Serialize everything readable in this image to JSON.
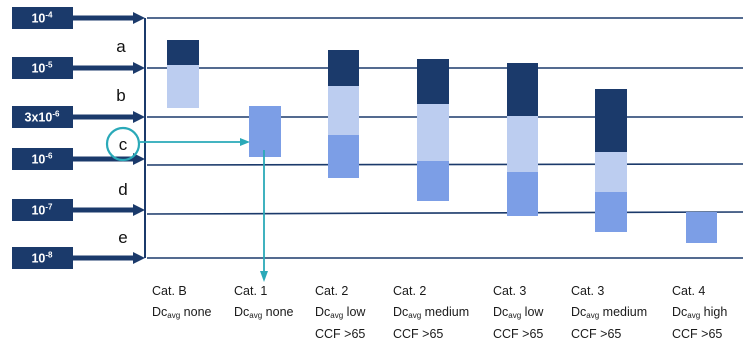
{
  "levels": [
    {
      "base": "10",
      "exp": "-4"
    },
    {
      "base": "10",
      "exp": "-5"
    },
    {
      "base": "3x10",
      "exp": "-6"
    },
    {
      "base": "10",
      "exp": "-6"
    },
    {
      "base": "10",
      "exp": "-7"
    },
    {
      "base": "10",
      "exp": "-8"
    }
  ],
  "zones": [
    "a",
    "b",
    "c",
    "d",
    "e"
  ],
  "highlighted_zone": "c",
  "categories": [
    {
      "line1": "Cat. B",
      "dc": "Dc",
      "sub": "avg",
      "level": "none",
      "line3": ""
    },
    {
      "line1": "Cat. 1",
      "dc": "Dc",
      "sub": "avg",
      "level": "none",
      "line3": ""
    },
    {
      "line1": "Cat. 2",
      "dc": "Dc",
      "sub": "avg",
      "level": "low",
      "line3": "CCF >65"
    },
    {
      "line1": "Cat. 2",
      "dc": "Dc",
      "sub": "avg",
      "level": "medium",
      "line3": "CCF >65"
    },
    {
      "line1": "Cat. 3",
      "dc": "Dc",
      "sub": "avg",
      "level": "low",
      "line3": "CCF >65"
    },
    {
      "line1": "Cat. 3",
      "dc": "Dc",
      "sub": "avg",
      "level": "medium",
      "line3": "CCF >65"
    },
    {
      "line1": "Cat. 4",
      "dc": "Dc",
      "sub": "avg",
      "level": "high",
      "line3": "CCF >65"
    }
  ],
  "colors": {
    "dark": "#1b3a6b",
    "light": "#bccdf0",
    "medium": "#7c9ee6",
    "accent": "#2aa9b8",
    "line": "#1b3a6b"
  }
}
